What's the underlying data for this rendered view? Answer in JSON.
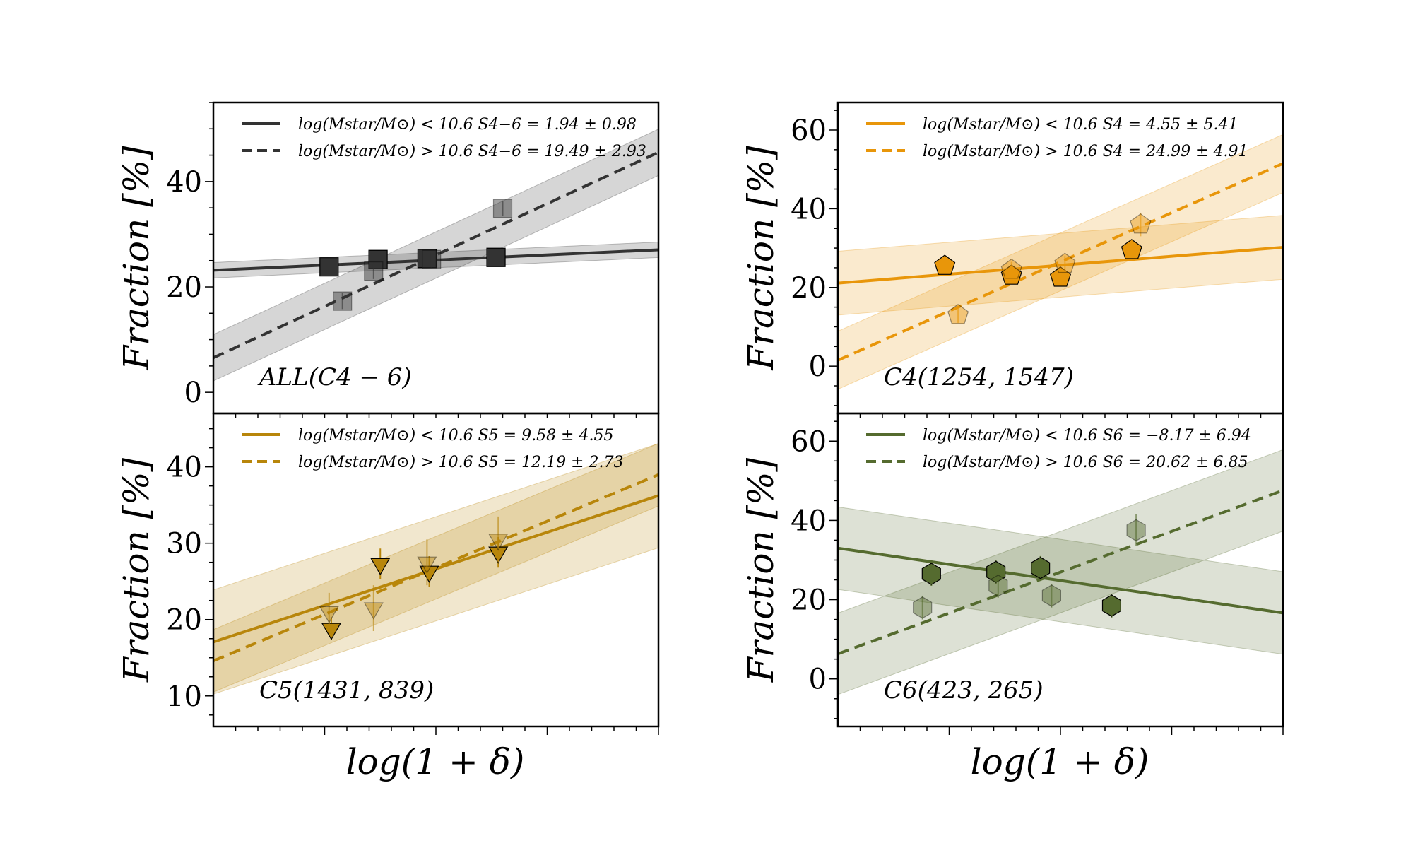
{
  "figure": {
    "xlabel": "log(1 + δ)",
    "ylabel": "Fraction [%]"
  },
  "chart_data": [
    {
      "type": "scatter",
      "panel_label": "ALL(C4 − 6)",
      "color": "#333333",
      "marker": "square",
      "xlim": [
        -1.1,
        0.9
      ],
      "ylim": [
        -4,
        55
      ],
      "yticks": [
        0,
        20,
        40
      ],
      "yminor_step": 5,
      "legend_position": "top",
      "series": [
        {
          "name": "log(Mstar/M⊙) < 10.6  S4−6 = 1.94 ± 0.98",
          "style": "solid",
          "points": [
            {
              "x": -0.58,
              "y": 23.8,
              "err": 1.0
            },
            {
              "x": -0.36,
              "y": 25.2,
              "err": 1.0
            },
            {
              "x": -0.14,
              "y": 25.4,
              "err": 1.0
            },
            {
              "x": 0.17,
              "y": 25.6,
              "err": 1.0
            }
          ],
          "fit": {
            "slope": 1.94,
            "intercept": 25.3,
            "band": 0.98
          }
        },
        {
          "name": "log(Mstar/M⊙) > 10.6  S4−6 = 19.49 ± 2.93",
          "style": "dashed",
          "points": [
            {
              "x": -0.52,
              "y": 17.3,
              "err": 1.5
            },
            {
              "x": -0.38,
              "y": 23.0,
              "err": 1.5
            },
            {
              "x": -0.12,
              "y": 25.2,
              "err": 1.5
            },
            {
              "x": 0.2,
              "y": 34.9,
              "err": 1.5
            }
          ],
          "fit": {
            "slope": 19.49,
            "intercept": 28.0,
            "band": 2.93
          }
        }
      ]
    },
    {
      "type": "scatter",
      "panel_label": "C4(1254, 1547)",
      "color": "#e8960a",
      "marker": "pentagon",
      "xlim": [
        -1.1,
        0.9
      ],
      "ylim": [
        -12,
        67
      ],
      "yticks": [
        0,
        20,
        40,
        60
      ],
      "yminor_step": 5,
      "legend_position": "top",
      "series": [
        {
          "name": "log(Mstar/M⊙) < 10.6  S4 = 4.55 ± 5.41",
          "style": "solid",
          "points": [
            {
              "x": -0.62,
              "y": 25.5,
              "err": 2
            },
            {
              "x": -0.32,
              "y": 23.0,
              "err": 2
            },
            {
              "x": -0.1,
              "y": 22.5,
              "err": 2
            },
            {
              "x": 0.22,
              "y": 29.5,
              "err": 2
            }
          ],
          "fit": {
            "slope": 4.55,
            "intercept": 26.1,
            "band": 5.41
          }
        },
        {
          "name": "log(Mstar/M⊙) > 10.6  S4 = 24.99 ± 4.91",
          "style": "dashed",
          "points": [
            {
              "x": -0.56,
              "y": 13.0,
              "err": 2
            },
            {
              "x": -0.32,
              "y": 24.5,
              "err": 2
            },
            {
              "x": -0.08,
              "y": 26.0,
              "err": 2
            },
            {
              "x": 0.26,
              "y": 36.0,
              "err": 3
            }
          ],
          "fit": {
            "slope": 24.99,
            "intercept": 29.0,
            "band": 4.91
          }
        }
      ]
    },
    {
      "type": "scatter",
      "panel_label": "C5(1431, 839)",
      "color": "#b8860b",
      "marker": "triangle-down",
      "xlim": [
        -1.1,
        0.9
      ],
      "ylim": [
        6,
        47
      ],
      "yticks": [
        10,
        20,
        30,
        40
      ],
      "yminor_step": 2.5,
      "legend_position": "top",
      "series": [
        {
          "name": "log(Mstar/M⊙) < 10.6  S5 = 9.58 ± 4.55",
          "style": "solid",
          "points": [
            {
              "x": -0.57,
              "y": 18.8,
              "err": 1.5
            },
            {
              "x": -0.35,
              "y": 27.3,
              "err": 2
            },
            {
              "x": -0.13,
              "y": 26.3,
              "err": 2
            },
            {
              "x": 0.18,
              "y": 28.8,
              "err": 2
            }
          ],
          "fit": {
            "slope": 9.58,
            "intercept": 27.6,
            "band": 4.55
          }
        },
        {
          "name": "log(Mstar/M⊙) > 10.6  S5 = 12.19 ± 2.73",
          "style": "dashed",
          "points": [
            {
              "x": -0.58,
              "y": 21.0,
              "err": 2.5
            },
            {
              "x": -0.38,
              "y": 21.5,
              "err": 3
            },
            {
              "x": -0.14,
              "y": 27.5,
              "err": 3
            },
            {
              "x": 0.18,
              "y": 30.5,
              "err": 3
            }
          ],
          "fit": {
            "slope": 12.19,
            "intercept": 28.0,
            "band": 2.73
          }
        }
      ]
    },
    {
      "type": "scatter",
      "panel_label": "C6(423, 265)",
      "color": "#556b2f",
      "marker": "hexagon",
      "xlim": [
        -1.1,
        0.9
      ],
      "ylim": [
        -12,
        67
      ],
      "yticks": [
        0,
        20,
        40,
        60
      ],
      "yminor_step": 5,
      "legend_position": "top",
      "series": [
        {
          "name": "log(Mstar/M⊙) < 10.6  S6 = −8.17 ± 6.94",
          "style": "solid",
          "points": [
            {
              "x": -0.68,
              "y": 26.5,
              "err": 3
            },
            {
              "x": -0.39,
              "y": 27.0,
              "err": 3
            },
            {
              "x": -0.19,
              "y": 28.0,
              "err": 3
            },
            {
              "x": 0.13,
              "y": 18.5,
              "err": 3
            }
          ],
          "fit": {
            "slope": -8.17,
            "intercept": 24.0,
            "band": 6.94
          }
        },
        {
          "name": "log(Mstar/M⊙) > 10.6  S6 = 20.62 ± 6.85",
          "style": "dashed",
          "points": [
            {
              "x": -0.72,
              "y": 18.0,
              "err": 3
            },
            {
              "x": -0.38,
              "y": 23.5,
              "err": 3
            },
            {
              "x": -0.14,
              "y": 21.0,
              "err": 3
            },
            {
              "x": 0.24,
              "y": 37.5,
              "err": 4
            }
          ],
          "fit": {
            "slope": 20.62,
            "intercept": 29.0,
            "band": 6.85
          }
        }
      ]
    }
  ]
}
